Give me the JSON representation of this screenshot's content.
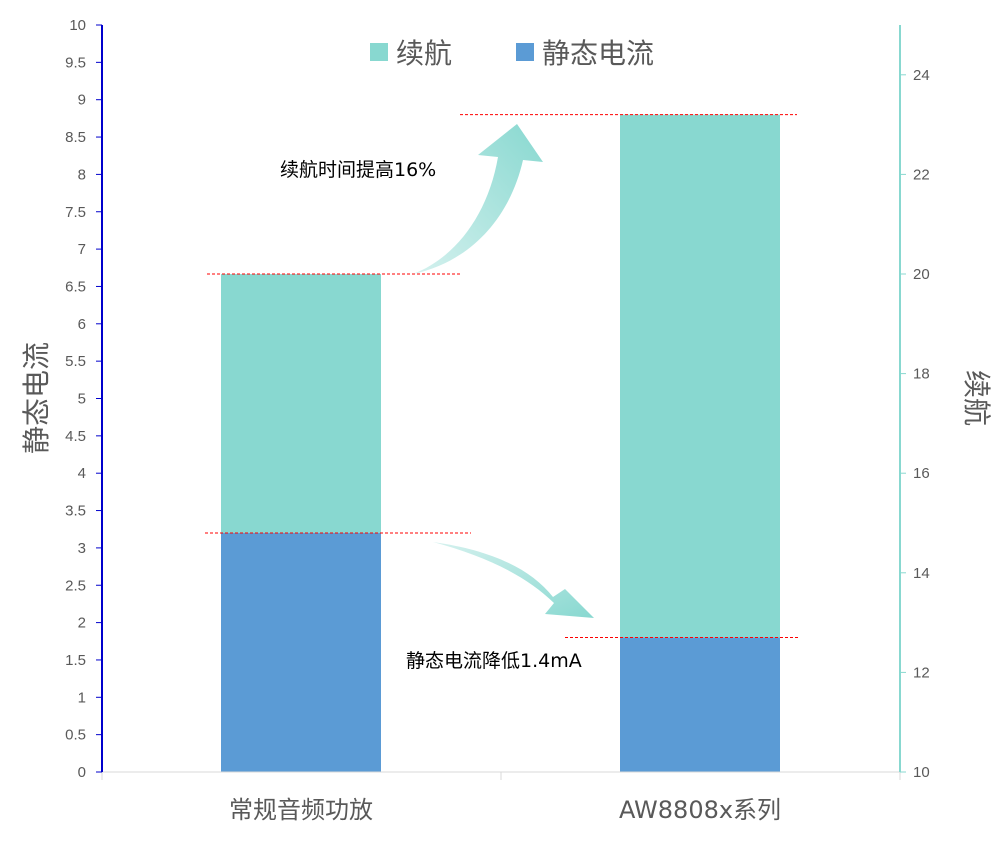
{
  "chart_data": {
    "type": "bar",
    "stacked": true,
    "categories": [
      "常规音频功放",
      "AW8808x系列"
    ],
    "series": [
      {
        "name": "静态电流",
        "axis": "left",
        "values": [
          3.2,
          1.8
        ],
        "color": "#5B9BD5"
      },
      {
        "name": "续航",
        "axis": "right",
        "values": [
          20,
          23.2
        ],
        "color": "#88D8D0"
      }
    ],
    "ylabel": "静态电流",
    "y2label": "续航",
    "ylim": [
      0,
      10
    ],
    "y2lim": [
      10,
      25
    ],
    "yticks": [
      "0",
      "0.5",
      "1",
      "1.5",
      "2",
      "2.5",
      "3",
      "3.5",
      "4",
      "4.5",
      "5",
      "5.5",
      "6",
      "6.5",
      "7",
      "7.5",
      "8",
      "8.5",
      "9",
      "9.5",
      "10"
    ],
    "y2ticks": [
      "10",
      "12",
      "14",
      "16",
      "18",
      "20",
      "22",
      "24"
    ],
    "legend_position": "top-center",
    "grid": false,
    "annotations": [
      {
        "text": "续航时间提高16%"
      },
      {
        "text": "静态电流降低1.4mA"
      }
    ],
    "axis_colors": {
      "left": "#0000CC",
      "right": "#88D8D0",
      "bottom": "#D9D9D9"
    },
    "reference_line_color": "#FF0000",
    "arrow_color": "#88D8D0"
  }
}
